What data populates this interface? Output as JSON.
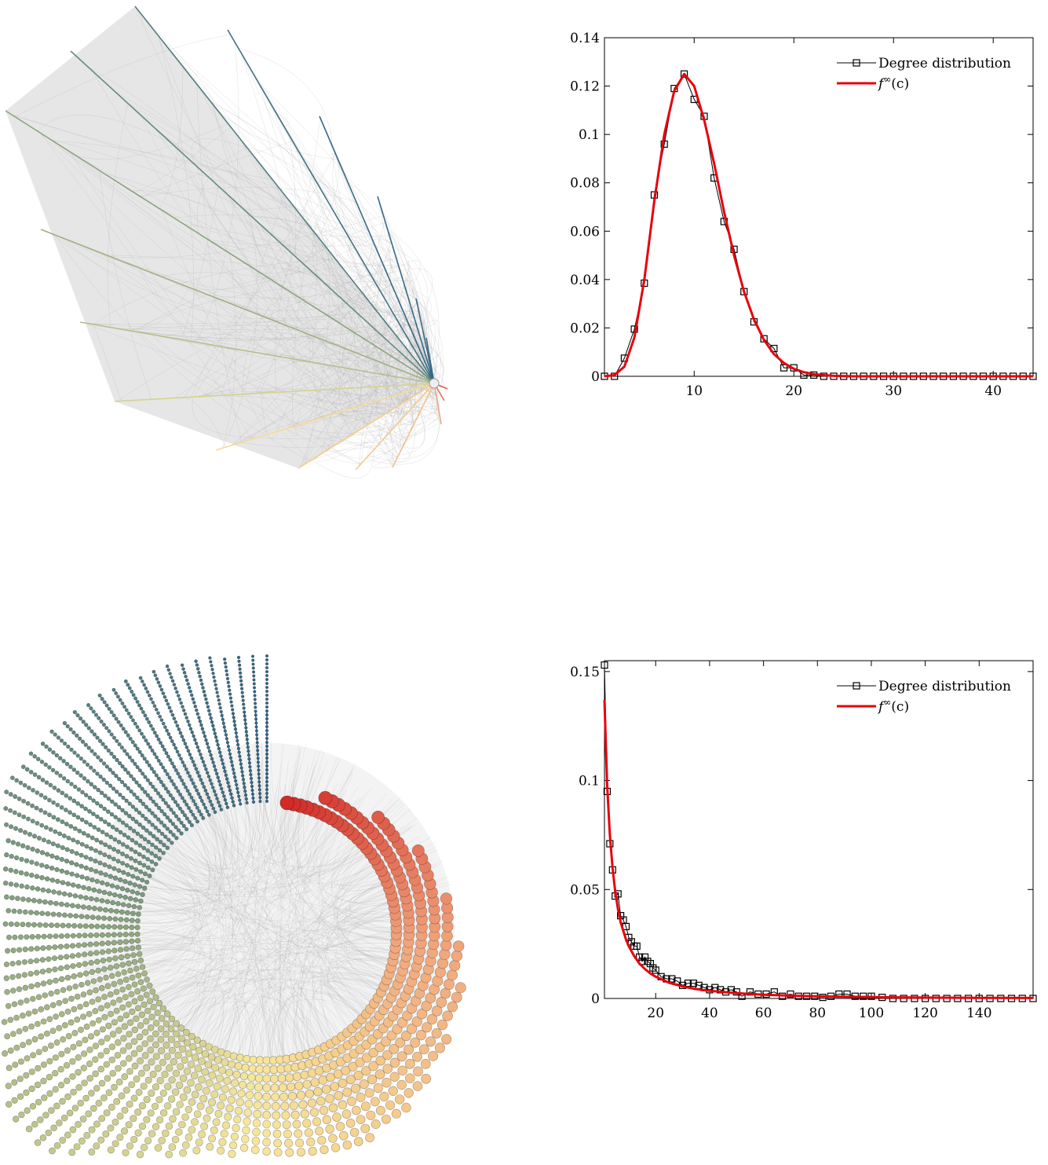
{
  "colors": {
    "edge_gray": "#9a9a9a",
    "hub_blue": "#2f6486",
    "hub_green": "#8aa47f",
    "hub_yellow": "#f7e79a",
    "hub_orange": "#f0a77e",
    "hub_red": "#d12a27",
    "fit_line": "#e8000b",
    "data_line": "#000000"
  },
  "networks": [
    {
      "name": "network-erdos-renyi-star",
      "layout": "radial-fan"
    },
    {
      "name": "network-scale-free-spiral",
      "layout": "spiral"
    }
  ],
  "chart_data": [
    {
      "type": "line",
      "xlim": [
        1,
        44
      ],
      "ylim": [
        0,
        0.14
      ],
      "xticks": [
        10,
        20,
        30,
        40
      ],
      "yticks": [
        0,
        0.02,
        0.04,
        0.06,
        0.08,
        0.1,
        0.12,
        0.14
      ],
      "ytick_labels": [
        "0",
        "0.02",
        "0.04",
        "0.06",
        "0.08",
        "0.1",
        "0.12",
        "0.14"
      ],
      "xtick_labels": [
        "10",
        "20",
        "30",
        "40"
      ],
      "legend_position": "top-right",
      "grid": false,
      "series": [
        {
          "name": "Degree distribution",
          "marker": "square",
          "color": "#000000",
          "x": [
            1,
            2,
            3,
            4,
            5,
            6,
            7,
            8,
            9,
            10,
            11,
            12,
            13,
            14,
            15,
            16,
            17,
            18,
            19,
            20,
            21,
            22,
            23,
            24,
            25,
            26,
            27,
            28,
            29,
            30,
            31,
            32,
            33,
            34,
            35,
            36,
            37,
            38,
            39,
            40,
            41,
            42,
            43,
            44
          ],
          "y": [
            0,
            0,
            0.0075,
            0.0195,
            0.0385,
            0.075,
            0.096,
            0.119,
            0.125,
            0.1145,
            0.1075,
            0.082,
            0.064,
            0.0525,
            0.035,
            0.0225,
            0.0155,
            0.0115,
            0.0035,
            0.0035,
            0.0005,
            0.0005,
            0,
            0,
            0,
            0,
            0,
            0,
            0,
            0,
            0,
            0,
            0,
            0,
            0,
            0,
            0,
            0,
            0,
            0,
            0,
            0,
            0,
            0
          ]
        },
        {
          "name": "f∞(c)",
          "marker": "none",
          "color": "#e8000b",
          "x": [
            1,
            2,
            3,
            4,
            5,
            6,
            7,
            8,
            9,
            10,
            11,
            12,
            13,
            14,
            15,
            16,
            17,
            18,
            19,
            20,
            21,
            22,
            23,
            24,
            25,
            26,
            27,
            28,
            29,
            30,
            31,
            32,
            33,
            34,
            35,
            36,
            37,
            38,
            39,
            40,
            41,
            42,
            43,
            44
          ],
          "y": [
            0,
            0.0005,
            0.004,
            0.016,
            0.04,
            0.0725,
            0.1,
            0.118,
            0.125,
            0.12,
            0.106,
            0.088,
            0.068,
            0.05,
            0.035,
            0.0235,
            0.015,
            0.0092,
            0.0055,
            0.0031,
            0.0017,
            0.0009,
            0.0005,
            0.0002,
            0.0001,
            0,
            0,
            0,
            0,
            0,
            0,
            0,
            0,
            0,
            0,
            0,
            0,
            0,
            0,
            0,
            0,
            0,
            0,
            0
          ]
        }
      ]
    },
    {
      "type": "line",
      "xlim": [
        1,
        160
      ],
      "ylim": [
        0,
        0.155
      ],
      "xticks": [
        20,
        40,
        60,
        80,
        100,
        120,
        140
      ],
      "yticks": [
        0,
        0.05,
        0.1,
        0.15
      ],
      "ytick_labels": [
        "0",
        "0.05",
        "0.1",
        "0.15"
      ],
      "xtick_labels": [
        "20",
        "40",
        "60",
        "80",
        "100",
        "120",
        "140"
      ],
      "legend_position": "top-right",
      "grid": false,
      "series": [
        {
          "name": "Degree distribution",
          "marker": "square",
          "color": "#000000",
          "x": [
            1,
            2,
            3,
            4,
            5,
            6,
            7,
            8,
            9,
            10,
            11,
            12,
            13,
            14,
            15,
            16,
            17,
            18,
            19,
            20,
            22,
            24,
            26,
            28,
            30,
            32,
            34,
            36,
            38,
            40,
            42,
            44,
            46,
            48,
            50,
            52,
            55,
            58,
            61,
            64,
            67,
            70,
            73,
            76,
            79,
            82,
            85,
            88,
            91,
            94,
            97,
            100,
            104,
            108,
            112,
            116,
            120,
            124,
            128,
            132,
            136,
            140,
            144,
            148,
            152,
            156,
            160
          ],
          "y": [
            0.153,
            0.095,
            0.071,
            0.059,
            0.047,
            0.048,
            0.038,
            0.036,
            0.033,
            0.028,
            0.026,
            0.024,
            0.024,
            0.019,
            0.017,
            0.019,
            0.017,
            0.016,
            0.014,
            0.013,
            0.01,
            0.009,
            0.009,
            0.008,
            0.006,
            0.007,
            0.007,
            0.006,
            0.005,
            0.004,
            0.005,
            0.004,
            0.003,
            0.004,
            0.003,
            0.001,
            0.003,
            0.002,
            0.002,
            0.003,
            0.001,
            0.002,
            0.001,
            0.001,
            0.001,
            0.0005,
            0.001,
            0.002,
            0.002,
            0.001,
            0.001,
            0.001,
            0.0005,
            0,
            0,
            0,
            0,
            0,
            0,
            0,
            0,
            0,
            0,
            0,
            0,
            0,
            0
          ]
        },
        {
          "name": "f∞(c)",
          "marker": "none",
          "color": "#e8000b",
          "x": [
            1,
            2,
            3,
            4,
            5,
            6,
            7,
            8,
            9,
            10,
            12,
            14,
            16,
            18,
            20,
            25,
            30,
            35,
            40,
            50,
            60,
            70,
            80,
            100,
            120,
            140,
            160
          ],
          "y": [
            0.137,
            0.098,
            0.075,
            0.06,
            0.049,
            0.041,
            0.035,
            0.031,
            0.027,
            0.024,
            0.0195,
            0.016,
            0.0135,
            0.0115,
            0.01,
            0.0072,
            0.0055,
            0.0043,
            0.0035,
            0.0024,
            0.0017,
            0.0013,
            0.001,
            0.0006,
            0.0004,
            0.0003,
            0.0002
          ]
        }
      ]
    }
  ],
  "legend": {
    "degree_label": "Degree distribution",
    "fit_base": "f",
    "fit_sup": "∞",
    "fit_arg": "(c)"
  }
}
